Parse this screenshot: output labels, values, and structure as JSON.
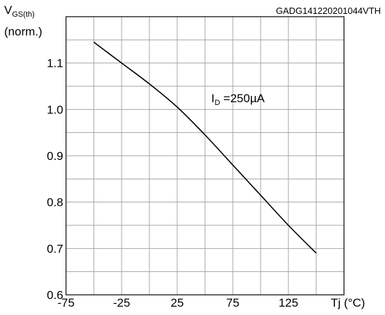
{
  "chart_data": {
    "type": "line",
    "code": "GADG141220201044VTH",
    "ylabel_main": "V",
    "ylabel_sub": "GS(th)",
    "ylabel_line2": "(norm.)",
    "xlabel": "Tj (°C)",
    "annotation_main": "I",
    "annotation_sub": "D",
    "annotation_value": " =250µA",
    "xlim": [
      -75,
      175
    ],
    "ylim": [
      0.6,
      1.2
    ],
    "grid": true,
    "xticks": [
      -75,
      -25,
      25,
      75,
      125
    ],
    "xtick_labels": [
      "-75",
      "-25",
      "25",
      "75",
      "125"
    ],
    "yticks": [
      0.6,
      0.7,
      0.8,
      0.9,
      1.0,
      1.1
    ],
    "ytick_labels": [
      "0.6",
      "0.7",
      "0.8",
      "0.9",
      "1.0",
      "1.1"
    ],
    "series": [
      {
        "x": [
          -50,
          -25,
          0,
          25,
          50,
          75,
          100,
          125,
          150
        ],
        "y": [
          1.145,
          1.1,
          1.055,
          1.005,
          0.945,
          0.88,
          0.815,
          0.75,
          0.69
        ]
      }
    ]
  }
}
